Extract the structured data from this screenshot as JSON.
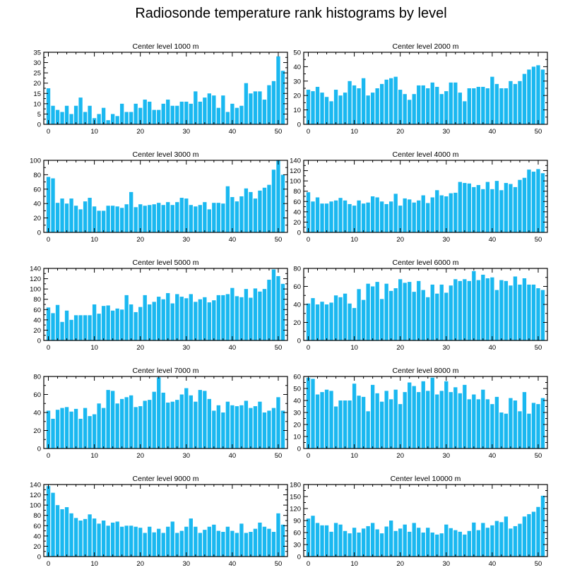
{
  "figure": {
    "title": "Radiosonde temperature rank histograms by level"
  },
  "colors": {
    "bar": "#1ab8f0",
    "axis": "#000000"
  },
  "chart_data": [
    {
      "type": "bar",
      "title": "Center level 1000 m",
      "xlim": [
        -1,
        52
      ],
      "ylim": [
        0,
        35
      ],
      "xticks": [
        0,
        10,
        20,
        30,
        40,
        50
      ],
      "yticks": [
        0,
        5,
        10,
        15,
        20,
        25,
        30,
        35
      ],
      "values": [
        17.5,
        9,
        7,
        6,
        9,
        5,
        9,
        13,
        6,
        9,
        3,
        5,
        8,
        2,
        5,
        4,
        10,
        6,
        6,
        10,
        8,
        12,
        11,
        7,
        7,
        10,
        12,
        9,
        9,
        11,
        11,
        10,
        16,
        11,
        13,
        15,
        14,
        8,
        14,
        6,
        10,
        8,
        9,
        20,
        15,
        16,
        16,
        12,
        19,
        21,
        33,
        26
      ]
    },
    {
      "type": "bar",
      "title": "Center level 2000 m",
      "xlim": [
        -1,
        52
      ],
      "ylim": [
        0,
        50
      ],
      "xticks": [
        0,
        10,
        20,
        30,
        40,
        50
      ],
      "yticks": [
        0,
        10,
        20,
        30,
        40,
        50
      ],
      "values": [
        24,
        23,
        26,
        22,
        19,
        16,
        24,
        20,
        22,
        30,
        27,
        25,
        32,
        20,
        22,
        25,
        28,
        31,
        32,
        33,
        24,
        21,
        17,
        21,
        27,
        27,
        25,
        29,
        26,
        21,
        23,
        29,
        29,
        22,
        16,
        25,
        25,
        26,
        26,
        25,
        33,
        28,
        25,
        25,
        30,
        28,
        30,
        35,
        38,
        40,
        41,
        38
      ]
    },
    {
      "type": "bar",
      "title": "Center level 3000 m",
      "xlim": [
        -1,
        52
      ],
      "ylim": [
        0,
        100
      ],
      "xticks": [
        0,
        10,
        20,
        30,
        40,
        50
      ],
      "yticks": [
        0,
        20,
        40,
        60,
        80,
        100
      ],
      "values": [
        77,
        75,
        41,
        47,
        40,
        47,
        37,
        32,
        43,
        48,
        36,
        30,
        30,
        37,
        37,
        36,
        34,
        39,
        56,
        35,
        39,
        37,
        38,
        39,
        41,
        38,
        42,
        38,
        42,
        48,
        47,
        38,
        36,
        38,
        42,
        32,
        41,
        41,
        40,
        64,
        49,
        43,
        50,
        61,
        56,
        47,
        58,
        62,
        66,
        87,
        100,
        80
      ]
    },
    {
      "type": "bar",
      "title": "Center level 4000 m",
      "xlim": [
        -1,
        52
      ],
      "ylim": [
        0,
        140
      ],
      "xticks": [
        0,
        10,
        20,
        30,
        40,
        50
      ],
      "yticks": [
        0,
        20,
        40,
        60,
        80,
        100,
        120,
        140
      ],
      "values": [
        78,
        60,
        68,
        56,
        56,
        60,
        62,
        67,
        62,
        55,
        52,
        62,
        56,
        58,
        70,
        68,
        60,
        55,
        60,
        75,
        52,
        66,
        64,
        58,
        62,
        72,
        57,
        68,
        82,
        72,
        70,
        76,
        77,
        98,
        96,
        95,
        88,
        92,
        84,
        98,
        84,
        100,
        82,
        96,
        94,
        88,
        102,
        106,
        122,
        118,
        123,
        115
      ]
    },
    {
      "type": "bar",
      "title": "Center level 5000 m",
      "xlim": [
        -1,
        52
      ],
      "ylim": [
        0,
        140
      ],
      "xticks": [
        0,
        10,
        20,
        30,
        40,
        50
      ],
      "yticks": [
        0,
        20,
        40,
        60,
        80,
        100,
        120,
        140
      ],
      "values": [
        64,
        53,
        69,
        36,
        58,
        40,
        49,
        49,
        49,
        49,
        70,
        52,
        67,
        68,
        58,
        62,
        60,
        88,
        70,
        55,
        65,
        88,
        70,
        75,
        85,
        80,
        92,
        72,
        90,
        85,
        82,
        90,
        75,
        80,
        84,
        74,
        78,
        88,
        88,
        90,
        102,
        86,
        84,
        100,
        83,
        101,
        95,
        100,
        118,
        138,
        125,
        110
      ]
    },
    {
      "type": "bar",
      "title": "Center level 6000 m",
      "xlim": [
        -1,
        52
      ],
      "ylim": [
        0,
        80
      ],
      "xticks": [
        0,
        10,
        20,
        30,
        40,
        50
      ],
      "yticks": [
        0,
        20,
        40,
        60,
        80
      ],
      "values": [
        41,
        47,
        40,
        43,
        40,
        42,
        50,
        48,
        52,
        41,
        36,
        57,
        45,
        63,
        60,
        65,
        46,
        63,
        55,
        58,
        68,
        64,
        65,
        54,
        66,
        56,
        48,
        62,
        52,
        62,
        53,
        61,
        68,
        66,
        68,
        66,
        77,
        67,
        73,
        69,
        70,
        56,
        67,
        66,
        61,
        71,
        62,
        69,
        62,
        62,
        58,
        56
      ]
    },
    {
      "type": "bar",
      "title": "Center level 7000 m",
      "xlim": [
        -1,
        52
      ],
      "ylim": [
        0,
        80
      ],
      "xticks": [
        0,
        10,
        20,
        30,
        40,
        50
      ],
      "yticks": [
        0,
        20,
        40,
        60,
        80
      ],
      "values": [
        42,
        33,
        43,
        45,
        46,
        41,
        44,
        33,
        45,
        36,
        38,
        50,
        45,
        65,
        64,
        50,
        55,
        57,
        59,
        46,
        47,
        53,
        54,
        63,
        79,
        62,
        51,
        52,
        54,
        60,
        67,
        59,
        52,
        65,
        64,
        55,
        42,
        48,
        40,
        52,
        48,
        47,
        48,
        53,
        45,
        47,
        52,
        40,
        42,
        45,
        57,
        42
      ]
    },
    {
      "type": "bar",
      "title": "Center level 8000 m",
      "xlim": [
        -1,
        52
      ],
      "ylim": [
        0,
        60
      ],
      "xticks": [
        0,
        10,
        20,
        30,
        40,
        50
      ],
      "yticks": [
        0,
        10,
        20,
        30,
        40,
        50,
        60
      ],
      "values": [
        59,
        58,
        45,
        47,
        49,
        48,
        35,
        40,
        40,
        40,
        54,
        44,
        43,
        31,
        53,
        46,
        39,
        48,
        41,
        49,
        37,
        47,
        55,
        52,
        47,
        56,
        48,
        59,
        45,
        48,
        56,
        47,
        51,
        46,
        53,
        41,
        45,
        41,
        49,
        41,
        37,
        43,
        30,
        29,
        42,
        40,
        31,
        47,
        29,
        38,
        37,
        42
      ]
    },
    {
      "type": "bar",
      "title": "Center level 9000 m",
      "xlim": [
        -1,
        52
      ],
      "ylim": [
        0,
        140
      ],
      "xticks": [
        0,
        10,
        20,
        30,
        40,
        50
      ],
      "yticks": [
        0,
        20,
        40,
        60,
        80,
        100,
        120,
        140
      ],
      "values": [
        137,
        124,
        100,
        92,
        96,
        84,
        75,
        70,
        73,
        82,
        74,
        64,
        70,
        60,
        66,
        68,
        58,
        60,
        60,
        58,
        56,
        46,
        58,
        47,
        54,
        46,
        58,
        68,
        46,
        50,
        58,
        74,
        58,
        46,
        52,
        58,
        62,
        50,
        48,
        58,
        50,
        46,
        64,
        46,
        48,
        54,
        66,
        58,
        54,
        48,
        84,
        62
      ]
    },
    {
      "type": "bar",
      "title": "Center level 10000 m",
      "xlim": [
        -1,
        52
      ],
      "ylim": [
        0,
        180
      ],
      "xticks": [
        0,
        10,
        20,
        30,
        40,
        50
      ],
      "yticks": [
        0,
        30,
        60,
        90,
        120,
        150,
        180
      ],
      "values": [
        95,
        102,
        84,
        78,
        78,
        62,
        84,
        80,
        64,
        58,
        72,
        60,
        70,
        76,
        84,
        68,
        58,
        75,
        90,
        64,
        70,
        80,
        62,
        84,
        72,
        60,
        72,
        60,
        55,
        58,
        80,
        71,
        66,
        62,
        55,
        64,
        85,
        66,
        84,
        72,
        78,
        89,
        86,
        100,
        70,
        76,
        82,
        100,
        106,
        112,
        124,
        152
      ]
    }
  ]
}
